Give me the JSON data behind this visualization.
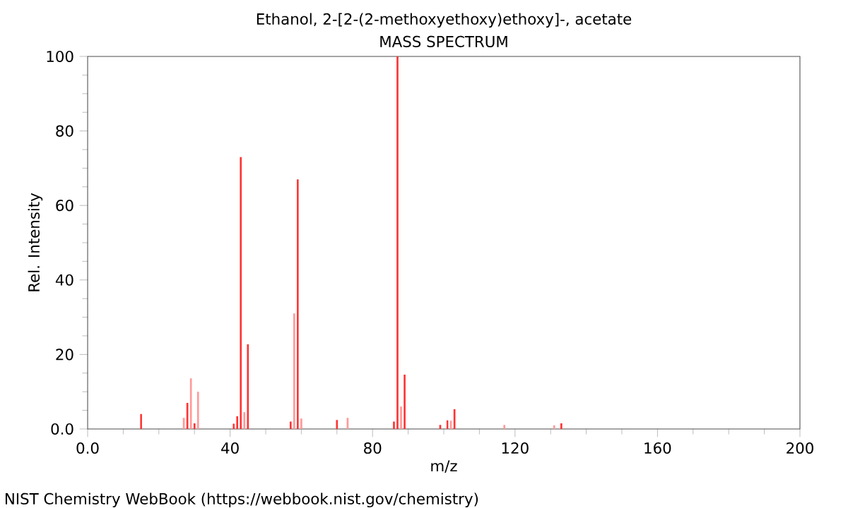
{
  "chart_data": {
    "type": "bar",
    "title": "Ethanol, 2-[2-(2-methoxyethoxy)ethoxy]-, acetate",
    "subtitle": "MASS SPECTRUM",
    "xlabel": "m/z",
    "ylabel": "Rel. Intensity",
    "x": [
      15,
      27,
      28,
      29,
      30,
      31,
      41,
      42,
      43,
      44,
      45,
      57,
      58,
      59,
      60,
      70,
      73,
      86,
      87,
      88,
      89,
      99,
      101,
      102,
      103,
      117,
      131,
      133
    ],
    "values": [
      4,
      3,
      7,
      13.6,
      1.5,
      10,
      1.4,
      3.4,
      73,
      4.5,
      22.7,
      2,
      31,
      67,
      2.8,
      2.4,
      3,
      2,
      100,
      6,
      14.6,
      1.1,
      2.3,
      2.2,
      5.3,
      1.1,
      1,
      1.5
    ],
    "colors": [
      "#ff3333",
      "#ff9999",
      "#ff3333",
      "#ff9999",
      "#ff3333",
      "#ff9999",
      "#ff3333",
      "#ff3333",
      "#ff3333",
      "#ff9999",
      "#ff3333",
      "#ff3333",
      "#ff9999",
      "#ff3333",
      "#ff9999",
      "#ff3333",
      "#ff9999",
      "#ff3333",
      "#ff3333",
      "#ff9999",
      "#ff3333",
      "#ff3333",
      "#ff3333",
      "#ff9999",
      "#ff3333",
      "#ff9999",
      "#ff9999",
      "#ff3333"
    ],
    "xlim": [
      0,
      200
    ],
    "xticks": [
      {
        "value": 0,
        "label": "0.0"
      },
      40,
      80,
      120,
      160,
      200
    ],
    "ylim": [
      0,
      100
    ],
    "yticks": [
      {
        "value": 0,
        "label": "0.0"
      },
      20,
      40,
      60,
      80,
      100
    ],
    "grid": false,
    "annotations": [
      "NIST Chemistry WebBook (https://webbook.nist.gov/chemistry)"
    ]
  }
}
